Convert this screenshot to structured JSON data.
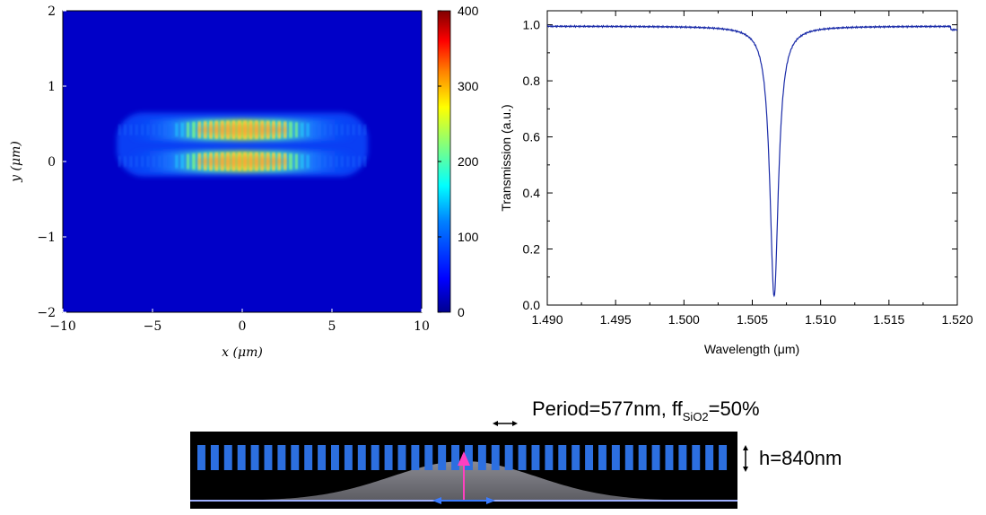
{
  "chart_data": [
    {
      "type": "heatmap",
      "xlabel": "x (μm)",
      "ylabel": "y (μm)",
      "xlim": [
        -10,
        10
      ],
      "ylim": [
        -2,
        2
      ],
      "xticks": [
        "−10",
        "−5",
        "0",
        "5",
        "10"
      ],
      "yticks": [
        "2",
        "1",
        "0",
        "−1",
        "−2"
      ],
      "colorbar": {
        "range": [
          0,
          400
        ],
        "ticks": [
          "400",
          "300",
          "200",
          "100",
          "0"
        ]
      },
      "field": {
        "x_extent": [
          -7,
          7
        ],
        "lobe_centers_y": [
          0.0,
          0.42
        ],
        "peak": 380
      },
      "colors": {
        "background": "#0000c8",
        "map": [
          "#00008f",
          "#0000ff",
          "#0080ff",
          "#00ffff",
          "#80ff80",
          "#ffff00",
          "#ff8000",
          "#ff0000",
          "#800000"
        ]
      }
    },
    {
      "type": "line",
      "xlabel": "Wavelength (μm)",
      "ylabel": "Transmission (a.u.)",
      "xlim": [
        1.49,
        1.52
      ],
      "ylim": [
        0.0,
        1.05
      ],
      "xticks": [
        "1.490",
        "1.495",
        "1.500",
        "1.505",
        "1.510",
        "1.515",
        "1.520"
      ],
      "yticks": [
        "1.0",
        "0.8",
        "0.6",
        "0.4",
        "0.2",
        "0.0"
      ],
      "series": [
        {
          "color": "#1a2ba8",
          "resonance": {
            "center": 1.5066,
            "min": 0.03,
            "baseline": 0.995
          },
          "x": [
            1.49,
            1.495,
            1.5,
            1.502,
            1.504,
            1.505,
            1.5055,
            1.506,
            1.5063,
            1.5066,
            1.5069,
            1.5072,
            1.5077,
            1.508,
            1.509,
            1.51,
            1.512,
            1.515,
            1.519,
            1.5198,
            1.52
          ],
          "y": [
            0.992,
            0.994,
            0.995,
            0.993,
            0.985,
            0.97,
            0.92,
            0.8,
            0.45,
            0.03,
            0.45,
            0.8,
            0.92,
            0.95,
            0.975,
            0.985,
            0.99,
            0.995,
            0.997,
            0.985,
            0.99
          ]
        }
      ]
    }
  ],
  "diagram": {
    "period_label": "Period=577nm, ff",
    "period_sub": "SiO2",
    "period_suffix": "=50%",
    "height_label": "h=840nm",
    "bar_count": 40,
    "colors": {
      "background": "#000000",
      "bars": "#2c6fe0",
      "gaussian": "#7c7c84",
      "baseline": "#9fb0ff",
      "source": "#ff40c0"
    }
  }
}
